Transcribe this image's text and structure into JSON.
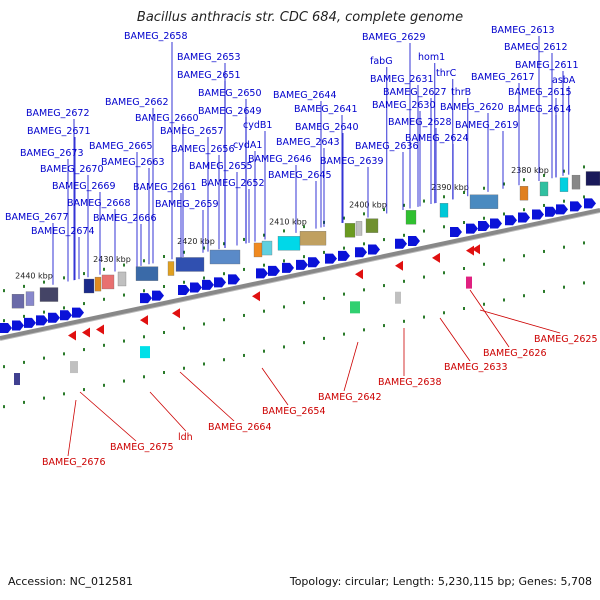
{
  "title": "Bacillus anthracis str. CDC 684, complete genome",
  "footer": {
    "accession": "Accession: NC_012581",
    "topology": "Topology: circular; Length: 5,230,115 bp; Genes: 5,708"
  },
  "colors": {
    "top_label": "#0000cc",
    "bottom_label": "#cc0000",
    "backbone": "#888888",
    "tick": "#2a7a2a",
    "forward_gene": "#0a12d8",
    "reverse_gene": "#e01010"
  },
  "scale_labels": [
    "2380 kbp",
    "2390 kbp",
    "2400 kbp",
    "2410 kbp",
    "2420 kbp",
    "2430 kbp",
    "2440 kbp"
  ],
  "top_labels": [
    "BAMEG_2613",
    "BAMEG_2612",
    "BAMEG_2611",
    "asbA",
    "BAMEG_2629",
    "hom1",
    "fabG",
    "thrC",
    "BAMEG_2617",
    "BAMEG_2615",
    "BAMEG_2631",
    "BAMEG_2627",
    "thrB",
    "BAMEG_2630",
    "BAMEG_2620",
    "BAMEG_2614",
    "BAMEG_2628",
    "BAMEG_2619",
    "BAMEG_2624",
    "BAMEG_2636",
    "BAMEG_2639",
    "BAMEG_2658",
    "BAMEG_2653",
    "BAMEG_2651",
    "BAMEG_2650",
    "BAMEG_2644",
    "BAMEG_2662",
    "BAMEG_2649",
    "BAMEG_2641",
    "BAMEG_2660",
    "BAMEG_2640",
    "BAMEG_2657",
    "BAMEG_2643",
    "cydB1",
    "BAMEG_2656",
    "BAMEG_2646",
    "cydA1",
    "BAMEG_2655",
    "BAMEG_2645",
    "BAMEG_2672",
    "BAMEG_2671",
    "BAMEG_2673",
    "BAMEG_2665",
    "BAMEG_2663",
    "BAMEG_2670",
    "BAMEG_2652",
    "BAMEG_2669",
    "BAMEG_2661",
    "BAMEG_2668",
    "BAMEG_2659",
    "BAMEG_2677",
    "BAMEG_2666",
    "BAMEG_2674"
  ],
  "bottom_labels": [
    "BAMEG_2625",
    "BAMEG_2626",
    "BAMEG_2633",
    "BAMEG_2638",
    "BAMEG_2642",
    "BAMEG_2654",
    "BAMEG_2664",
    "ldh",
    "BAMEG_2675",
    "BAMEG_2676"
  ]
}
